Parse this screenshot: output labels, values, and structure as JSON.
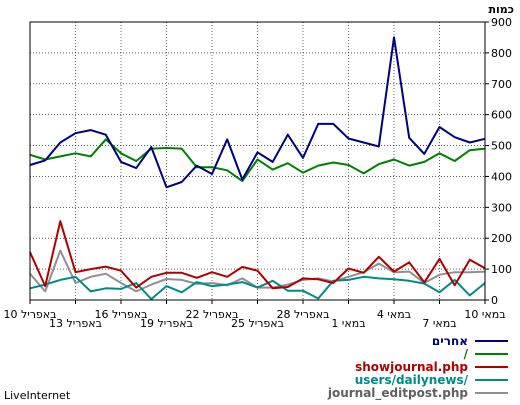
{
  "brand": "LiveInternet",
  "chart_data": {
    "type": "line",
    "unit_label": "כמות",
    "ylim": [
      0,
      900
    ],
    "yticks": [
      "0",
      "100",
      "200",
      "300",
      "400",
      "500",
      "600",
      "700",
      "800",
      "900"
    ],
    "xtick_labels": [
      "10 באפריל",
      "13 באפריל",
      "16 באפריל",
      "19 באפריל",
      "22 באפריל",
      "25 באפריל",
      "28 באפריל",
      "1 במאי",
      "4 במאי",
      "7 במאי",
      "10 במאי"
    ],
    "grid": true,
    "legend_position": "bottom-right",
    "series": [
      {
        "name": "אחרים",
        "color": "#000080",
        "values": [
          437,
          452,
          510,
          540,
          550,
          535,
          447,
          427,
          495,
          365,
          382,
          435,
          408,
          520,
          390,
          478,
          447,
          535,
          460,
          570,
          570,
          523,
          510,
          497,
          850,
          525,
          473,
          560,
          527,
          510,
          522
        ]
      },
      {
        "name": "/",
        "color": "#008000",
        "values": [
          470,
          455,
          465,
          475,
          465,
          520,
          475,
          450,
          490,
          492,
          490,
          430,
          430,
          420,
          385,
          455,
          422,
          443,
          412,
          435,
          445,
          437,
          410,
          440,
          455,
          435,
          447,
          475,
          450,
          485,
          490
        ]
      },
      {
        "name": "showjournal.php",
        "color": "#b00000",
        "values": [
          155,
          45,
          255,
          90,
          100,
          108,
          95,
          40,
          75,
          88,
          88,
          72,
          90,
          75,
          107,
          95,
          38,
          42,
          70,
          67,
          55,
          102,
          88,
          140,
          92,
          122,
          57,
          133,
          48,
          130,
          103
        ]
      },
      {
        "name": "users/dailynews/",
        "color": "#008b8b",
        "values": [
          38,
          50,
          65,
          75,
          28,
          38,
          36,
          55,
          3,
          45,
          25,
          58,
          45,
          50,
          58,
          40,
          62,
          30,
          30,
          5,
          62,
          65,
          75,
          70,
          67,
          62,
          53,
          25,
          65,
          15,
          55
        ]
      },
      {
        "name": "journal_editpost.php",
        "color": "#909090",
        "values": [
          85,
          28,
          160,
          55,
          75,
          85,
          55,
          28,
          50,
          68,
          65,
          52,
          55,
          48,
          70,
          40,
          40,
          50,
          65,
          70,
          60,
          75,
          90,
          118,
          90,
          92,
          55,
          82,
          90,
          90,
          92
        ]
      }
    ]
  }
}
